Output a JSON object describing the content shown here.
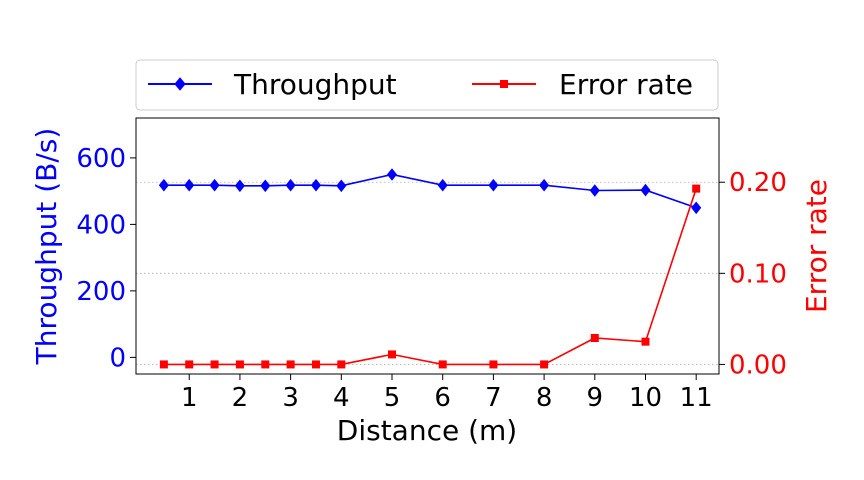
{
  "chart_data": {
    "type": "line",
    "xlabel": "Distance (m)",
    "ylabel_left": "Throughput (B/s)",
    "ylabel_right": "Error rate",
    "x": [
      0.5,
      1,
      1.5,
      2,
      2.5,
      3,
      3.5,
      4,
      5,
      6,
      7,
      8,
      9,
      10,
      11
    ],
    "x_ticks": [
      1,
      2,
      3,
      4,
      5,
      6,
      7,
      8,
      9,
      10,
      11
    ],
    "xlim": [
      -0.05,
      11.45
    ],
    "ylim_left": [
      -50,
      720
    ],
    "yticks_left": [
      0,
      200,
      400,
      600
    ],
    "ylim_right": [
      -0.0105,
      0.2705
    ],
    "yticks_right": [
      "0.00",
      "0.10",
      "0.20"
    ],
    "grid": "horizontal dotted at right-axis ticks",
    "legend": "top, outside plot, two columns",
    "series": [
      {
        "name": "Throughput",
        "axis": "left",
        "color": "#0000ff",
        "marker": "diamond",
        "values": [
          518,
          518,
          518,
          516,
          516,
          518,
          518,
          516,
          550,
          518,
          518,
          518,
          502,
          503,
          450
        ]
      },
      {
        "name": "Error rate",
        "axis": "right",
        "color": "#ff0000",
        "marker": "square",
        "values": [
          0.0,
          0.0,
          0.0,
          0.0,
          0.0,
          0.0,
          0.0,
          0.0,
          0.011,
          0.0,
          0.0,
          0.0,
          0.029,
          0.025,
          0.193
        ]
      }
    ]
  }
}
